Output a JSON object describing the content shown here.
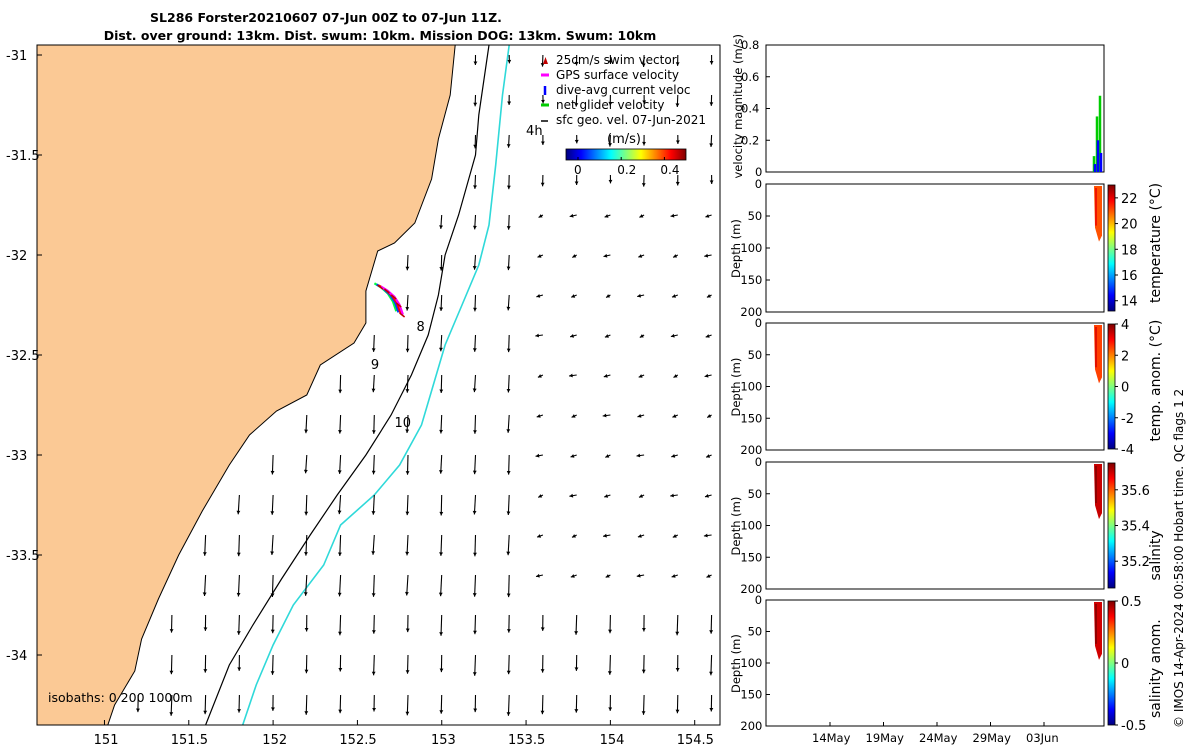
{
  "title_line1": "SL286 Forster20210607 07-Jun 00Z to 07-Jun 11Z.",
  "title_line2": "Dist. over ground: 13km. Dist. swum: 10km. Mission DOG: 13km. Swum: 10km",
  "credit": "© IMOS 14-Apr-2024 00:58:00 Hobart time. QC flags 1  2",
  "colors": {
    "land": "#fbc995",
    "shelf_isobath": "#000000",
    "deep_isobath": "#2fd9d9"
  },
  "chart_data": [
    {
      "type": "map",
      "xlim": [
        150.6,
        154.65
      ],
      "ylim": [
        -34.35,
        -30.95
      ],
      "x_ticks": [
        151,
        151.5,
        152,
        152.5,
        153,
        153.5,
        154,
        154.5
      ],
      "x_tick_labels": [
        "151",
        "151.5",
        "152",
        "152.5",
        "153",
        "153.5",
        "154",
        "154.5"
      ],
      "y_ticks": [
        -31,
        -31.5,
        -32,
        -32.5,
        -33,
        -33.5,
        -34
      ],
      "y_tick_labels": [
        "-31",
        "-31.5",
        "-32",
        "-32.5",
        "-33",
        "-33.5",
        "-34"
      ],
      "legend": {
        "placement": "top-right",
        "entries": [
          {
            "label": "25cm/s swim vector",
            "color": "#c00000"
          },
          {
            "label": "GPS surface velocity",
            "color": "#ff00ff"
          },
          {
            "label": "dive-avg current veloc",
            "color": "#0000ff"
          },
          {
            "label": "net glider velocity",
            "color": "#00cc00"
          },
          {
            "label": "sfc geo. vel. 07-Jun-2021",
            "color": "#000000"
          }
        ]
      },
      "colorbar": {
        "label": "(m/s)",
        "ticks": [
          0,
          0.2,
          0.4
        ],
        "tick_labels": [
          "0",
          "0.2",
          "0.4"
        ],
        "range": [
          0,
          0.5
        ]
      },
      "isobaths_label": "isobaths: 0   200  1000m",
      "annotations": [
        {
          "text": "4h",
          "lon": 153.5,
          "lat": -31.4
        },
        {
          "text": "8",
          "lon": 152.85,
          "lat": -32.38
        },
        {
          "text": "9",
          "lon": 152.58,
          "lat": -32.57
        },
        {
          "text": "10",
          "lon": 152.72,
          "lat": -32.86
        }
      ],
      "coast": [
        [
          153.08,
          -30.95
        ],
        [
          153.05,
          -31.2
        ],
        [
          152.98,
          -31.42
        ],
        [
          152.94,
          -31.62
        ],
        [
          152.84,
          -31.84
        ],
        [
          152.72,
          -31.94
        ],
        [
          152.62,
          -31.98
        ],
        [
          152.55,
          -32.18
        ],
        [
          152.55,
          -32.34
        ],
        [
          152.48,
          -32.44
        ],
        [
          152.28,
          -32.55
        ],
        [
          152.2,
          -32.7
        ],
        [
          152.02,
          -32.78
        ],
        [
          151.86,
          -32.9
        ],
        [
          151.74,
          -33.05
        ],
        [
          151.58,
          -33.28
        ],
        [
          151.44,
          -33.5
        ],
        [
          151.32,
          -33.72
        ],
        [
          151.22,
          -33.92
        ],
        [
          151.18,
          -34.08
        ],
        [
          151.06,
          -34.25
        ],
        [
          151.02,
          -34.35
        ]
      ],
      "isobath_200": [
        [
          153.28,
          -30.95
        ],
        [
          153.22,
          -31.3
        ],
        [
          153.2,
          -31.5
        ],
        [
          153.1,
          -31.8
        ],
        [
          153.02,
          -32.0
        ],
        [
          152.98,
          -32.2
        ],
        [
          152.92,
          -32.4
        ],
        [
          152.82,
          -32.6
        ],
        [
          152.7,
          -32.8
        ],
        [
          152.55,
          -33.0
        ],
        [
          152.38,
          -33.2
        ],
        [
          152.22,
          -33.4
        ],
        [
          152.05,
          -33.62
        ],
        [
          151.88,
          -33.85
        ],
        [
          151.74,
          -34.05
        ],
        [
          151.6,
          -34.35
        ]
      ],
      "isobath_1000": [
        [
          153.4,
          -30.95
        ],
        [
          153.36,
          -31.2
        ],
        [
          153.32,
          -31.55
        ],
        [
          153.28,
          -31.85
        ],
        [
          153.22,
          -32.05
        ],
        [
          153.12,
          -32.25
        ],
        [
          153.02,
          -32.45
        ],
        [
          152.95,
          -32.65
        ],
        [
          152.88,
          -32.85
        ],
        [
          152.75,
          -33.05
        ],
        [
          152.6,
          -33.2
        ],
        [
          152.4,
          -33.35
        ],
        [
          152.3,
          -33.55
        ],
        [
          152.12,
          -33.75
        ],
        [
          152.0,
          -33.95
        ],
        [
          151.9,
          -34.15
        ],
        [
          151.82,
          -34.35
        ]
      ],
      "glider_track": [
        [
          152.62,
          -32.15
        ],
        [
          152.66,
          -32.17
        ],
        [
          152.7,
          -32.2
        ],
        [
          152.73,
          -32.24
        ],
        [
          152.75,
          -32.29
        ]
      ],
      "vector_field": {
        "lons": [
          150.8,
          151.0,
          151.2,
          151.4,
          151.6,
          151.8,
          152.0,
          152.2,
          152.4,
          152.6,
          152.8,
          153.0,
          153.2,
          153.4,
          153.6,
          153.8,
          154.0,
          154.2,
          154.4,
          154.6
        ],
        "lats": [
          -31.0,
          -31.2,
          -31.4,
          -31.6,
          -31.8,
          -32.0,
          -32.2,
          -32.4,
          -32.6,
          -32.8,
          -33.0,
          -33.2,
          -33.4,
          -33.6,
          -33.8,
          -34.0,
          -34.2
        ]
      }
    },
    {
      "type": "bar",
      "ylabel": "velocity magnitude (m/s)",
      "ylim": [
        0,
        0.8
      ],
      "y_ticks": [
        0,
        0.2,
        0.4,
        0.6,
        0.8
      ],
      "y_tick_labels": [
        "0",
        "0.2",
        "0.4",
        "0.6",
        "0.8"
      ],
      "series": [
        {
          "color": "#00cc00",
          "values": [
            0.1,
            0.35,
            0.48
          ]
        },
        {
          "color": "#0000ff",
          "values": [
            0.05,
            0.2,
            0.12
          ]
        }
      ]
    },
    {
      "type": "heatmap",
      "ylabel": "Depth (m)",
      "colorbar_label": "temperature (°C)",
      "ylim": [
        200,
        0
      ],
      "y_ticks": [
        0,
        50,
        100,
        150,
        200
      ],
      "y_tick_labels": [
        "0",
        "50",
        "100",
        "150",
        "200"
      ],
      "clim": [
        13.2,
        23
      ],
      "cbar_ticks": [
        14,
        16,
        18,
        20,
        22
      ],
      "cbar_tick_labels": [
        "14",
        "16",
        "18",
        "20",
        "22"
      ],
      "profile_depth_max": 90,
      "value": 21
    },
    {
      "type": "heatmap",
      "ylabel": "Depth (m)",
      "colorbar_label": "temp. anom. (°C)",
      "ylim": [
        200,
        0
      ],
      "y_ticks": [
        0,
        50,
        100,
        150,
        200
      ],
      "y_tick_labels": [
        "0",
        "50",
        "100",
        "150",
        "200"
      ],
      "clim": [
        -4,
        4
      ],
      "cbar_ticks": [
        -4,
        -2,
        0,
        2,
        4
      ],
      "cbar_tick_labels": [
        "-4",
        "-2",
        "0",
        "2",
        "4"
      ],
      "profile_depth_max": 95,
      "value": 2.5
    },
    {
      "type": "heatmap",
      "ylabel": "Depth (m)",
      "colorbar_label": "salinity",
      "ylim": [
        200,
        0
      ],
      "y_ticks": [
        0,
        50,
        100,
        150,
        200
      ],
      "y_tick_labels": [
        "0",
        "50",
        "100",
        "150",
        "200"
      ],
      "clim": [
        35.05,
        35.75
      ],
      "cbar_ticks": [
        35.2,
        35.4,
        35.6
      ],
      "cbar_tick_labels": [
        "35.2",
        "35.4",
        "35.6"
      ],
      "profile_depth_max": 90,
      "value": 35.7
    },
    {
      "type": "heatmap",
      "ylabel": "Depth (m)",
      "colorbar_label": "salinity anom.",
      "ylim": [
        200,
        0
      ],
      "y_ticks": [
        0,
        50,
        100,
        150,
        200
      ],
      "y_tick_labels": [
        "0",
        "50",
        "100",
        "150",
        "200"
      ],
      "clim": [
        -0.5,
        0.5
      ],
      "cbar_ticks": [
        -0.5,
        0,
        0.5
      ],
      "cbar_tick_labels": [
        "-0.5",
        "0",
        "0.5"
      ],
      "profile_depth_max": 95,
      "value": 0.42,
      "x_ticks": [
        "14May",
        "19May",
        "24May",
        "29May",
        "03Jun"
      ]
    }
  ]
}
